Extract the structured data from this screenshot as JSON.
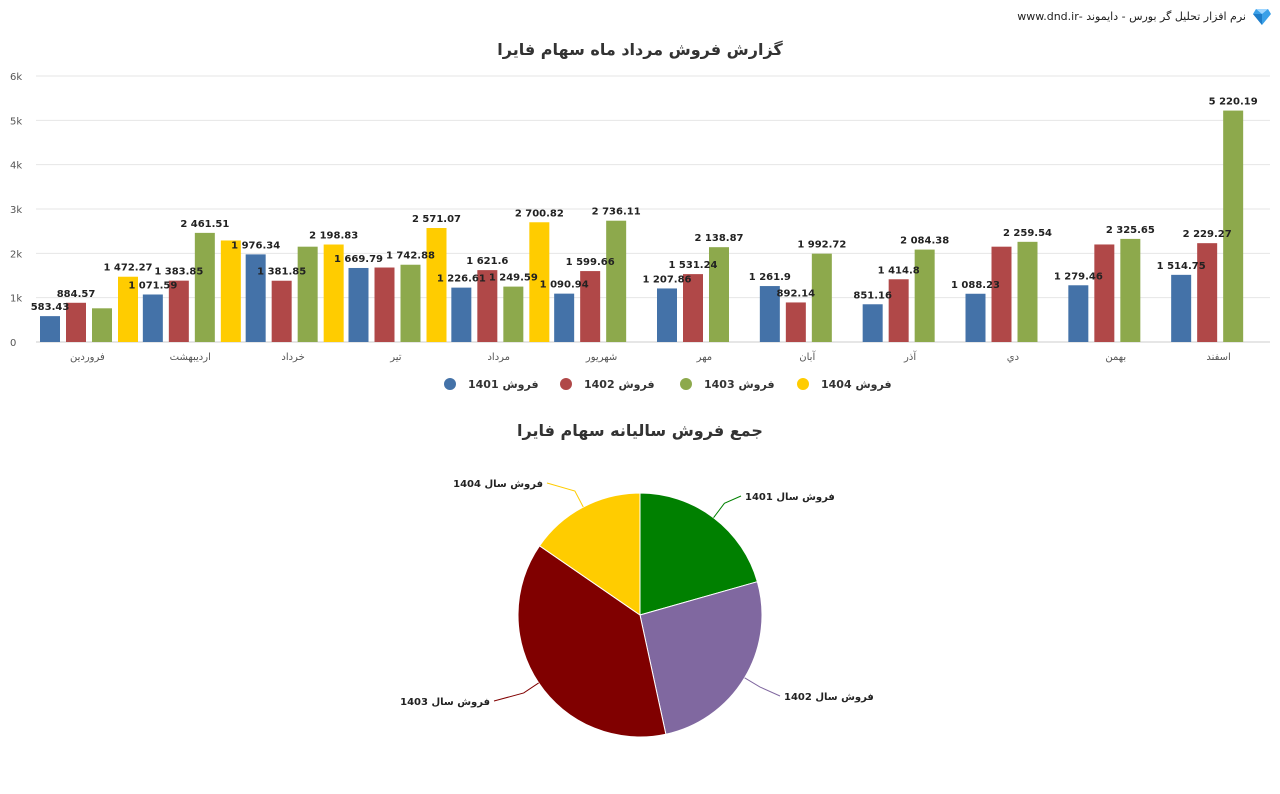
{
  "header": {
    "brand_text": "نرم افزار تحلیل گر بورس - دایموند -www.dnd.ir"
  },
  "chart_data": [
    {
      "type": "bar",
      "title": "گزارش فروش مرداد ماه سهام فایرا",
      "ylim": [
        0,
        6000
      ],
      "yticks": [
        "0",
        "1k",
        "2k",
        "3k",
        "4k",
        "5k",
        "6k"
      ],
      "grid": true,
      "legend_position": "bottom",
      "categories": [
        "فروردین",
        "اردیبهشت",
        "خرداد",
        "تیر",
        "مرداد",
        "شهریور",
        "مهر",
        "آبان",
        "آذر",
        "دي",
        "بهمن",
        "اسفند"
      ],
      "series": [
        {
          "name": "فروش 1401",
          "color": "#4472a8",
          "values": [
            583.43,
            1071.59,
            1976.34,
            1669.79,
            1226.61,
            1090.94,
            1207.86,
            1261.9,
            851.16,
            1088.23,
            1279.46,
            1514.75
          ],
          "labels": [
            "583.43",
            "1 071.59",
            "1 976.34",
            "1 669.79",
            "1 226.61",
            "1 090.94",
            "1 207.86",
            "1 261.9",
            "851.16",
            "1 088.23",
            "1 279.46",
            "1 514.75"
          ]
        },
        {
          "name": "فروش 1402",
          "color": "#b04848",
          "values": [
            884.57,
            1383.85,
            1381.85,
            1680,
            1621.6,
            1599.66,
            1531.24,
            892.14,
            1414.8,
            2150,
            2200,
            2229.27
          ],
          "labels": [
            "884.57",
            "1 383.85",
            "1 381.85",
            "",
            "1 621.6",
            "1 599.66",
            "1 531.24",
            "892.14",
            "1 414.8",
            "",
            "",
            "2 229.27"
          ]
        },
        {
          "name": "فروش 1403",
          "color": "#8da94c",
          "values": [
            760,
            2461.51,
            2150,
            1742.88,
            1249.59,
            2736.11,
            2138.87,
            1992.72,
            2084.38,
            2259.54,
            2325.65,
            5220.19
          ],
          "labels": [
            "",
            "2 461.51",
            "",
            "1 742.88",
            "1 249.59",
            "2 736.11",
            "2 138.87",
            "1 992.72",
            "2 084.38",
            "2 259.54",
            "2 325.65",
            "5 220.19"
          ]
        },
        {
          "name": "فروش 1404",
          "color": "#ffcc00",
          "values": [
            1472.27,
            2290,
            2198.83,
            2571.07,
            2700.82,
            null,
            null,
            null,
            null,
            null,
            null,
            null
          ],
          "labels": [
            "1 472.27",
            "",
            "2 198.83",
            "2 571.07",
            "2 700.82",
            "",
            "",
            "",
            "",
            "",
            "",
            ""
          ]
        }
      ]
    },
    {
      "type": "pie",
      "title": "جمع فروش سالیانه سهام فایرا",
      "slices": [
        {
          "name": "فروش سال 1401",
          "value": 20.6,
          "color": "#008000"
        },
        {
          "name": "فروش سال 1402",
          "value": 26.0,
          "color": "#8068a0"
        },
        {
          "name": "فروش سال 1403",
          "value": 38.0,
          "color": "#800000"
        },
        {
          "name": "فروش سال 1404",
          "value": 15.4,
          "color": "#ffcc00"
        }
      ]
    }
  ]
}
